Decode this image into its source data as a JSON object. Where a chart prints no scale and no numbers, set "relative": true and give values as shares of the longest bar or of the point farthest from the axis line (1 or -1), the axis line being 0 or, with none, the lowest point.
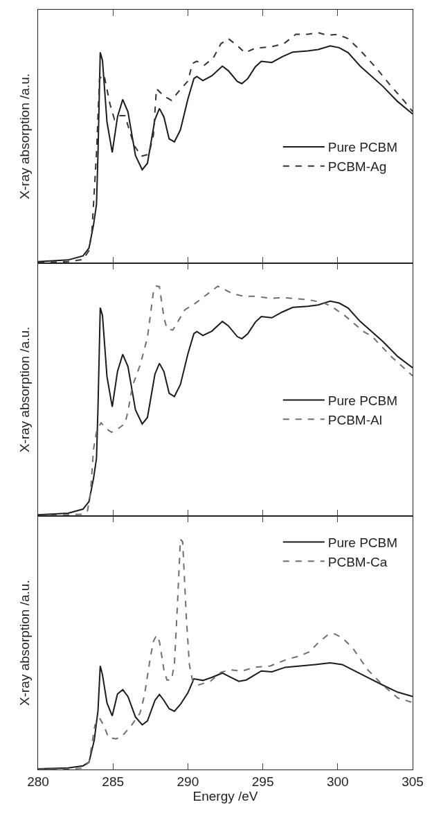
{
  "chart_data": [
    {
      "type": "line",
      "ylabel": "X-ray absorption /a.u.",
      "relative": true,
      "xlim": [
        280,
        305
      ],
      "xticks": [
        280,
        285,
        290,
        295,
        300,
        305
      ],
      "tick_labels": false,
      "legend": "right",
      "series": [
        {
          "name": "Pure PCBM",
          "color": "#1a1a1a",
          "line_style": "solid",
          "x": [
            280,
            282,
            283,
            283.4,
            283.7,
            283.9,
            284.0,
            284.15,
            284.3,
            284.6,
            284.95,
            285.3,
            285.65,
            286.0,
            286.5,
            286.95,
            287.3,
            287.8,
            288.1,
            288.4,
            288.75,
            289.1,
            289.5,
            290.0,
            290.4,
            290.6,
            291.0,
            291.6,
            292.3,
            292.7,
            293.3,
            293.6,
            294.0,
            294.5,
            294.9,
            295.6,
            296.3,
            297.0,
            298.0,
            298.7,
            299.5,
            300.1,
            300.7,
            301.5,
            303.0,
            304.0,
            305.0
          ],
          "values": [
            0.006,
            0.013,
            0.031,
            0.065,
            0.165,
            0.254,
            0.478,
            0.915,
            0.879,
            0.612,
            0.48,
            0.634,
            0.71,
            0.656,
            0.467,
            0.405,
            0.433,
            0.623,
            0.671,
            0.634,
            0.539,
            0.526,
            0.578,
            0.712,
            0.801,
            0.81,
            0.792,
            0.813,
            0.855,
            0.835,
            0.788,
            0.779,
            0.801,
            0.852,
            0.876,
            0.871,
            0.896,
            0.916,
            0.921,
            0.927,
            0.943,
            0.935,
            0.913,
            0.855,
            0.768,
            0.701,
            0.647
          ]
        },
        {
          "name": "PCBM-Ag",
          "color": "#333333",
          "line_style": "dashed",
          "x": [
            280,
            282,
            283,
            283.4,
            283.6,
            283.9,
            284.1,
            284.4,
            284.8,
            285.1,
            285.4,
            285.8,
            286.4,
            286.9,
            287.4,
            287.7,
            287.9,
            288.4,
            288.9,
            289.4,
            290.0,
            290.3,
            290.6,
            291.1,
            291.7,
            292.2,
            292.7,
            293.3,
            293.8,
            294.5,
            295.5,
            296.4,
            297.2,
            298.0,
            298.7,
            299.3,
            300.0,
            300.7,
            301.5,
            302.5,
            303.5,
            304.4,
            305
          ],
          "values": [
            0.002,
            0.006,
            0.015,
            0.054,
            0.143,
            0.478,
            0.801,
            0.818,
            0.69,
            0.623,
            0.64,
            0.64,
            0.511,
            0.464,
            0.472,
            0.556,
            0.757,
            0.725,
            0.706,
            0.746,
            0.79,
            0.866,
            0.876,
            0.859,
            0.891,
            0.952,
            0.974,
            0.944,
            0.913,
            0.933,
            0.938,
            0.952,
            0.993,
            0.993,
            1,
            0.989,
            0.993,
            0.974,
            0.924,
            0.852,
            0.773,
            0.706,
            0.658
          ]
        }
      ]
    },
    {
      "type": "line",
      "ylabel": "X-ray absorption /a.u.",
      "relative": true,
      "xlim": [
        280,
        305
      ],
      "xticks": [
        280,
        285,
        290,
        295,
        300,
        305
      ],
      "tick_labels": false,
      "legend": "right",
      "series": [
        {
          "name": "Pure PCBM",
          "color": "#1a1a1a",
          "line_style": "solid",
          "x": [
            280,
            282,
            283,
            283.4,
            283.7,
            283.9,
            284.0,
            284.15,
            284.3,
            284.6,
            284.95,
            285.3,
            285.65,
            286.0,
            286.5,
            286.95,
            287.3,
            287.8,
            288.1,
            288.4,
            288.75,
            289.1,
            289.5,
            290.0,
            290.4,
            290.6,
            291.0,
            291.6,
            292.3,
            292.7,
            293.3,
            293.6,
            294.0,
            294.5,
            294.9,
            295.6,
            296.3,
            297.0,
            298.0,
            298.7,
            299.5,
            300.1,
            300.7,
            301.5,
            303.0,
            304.0,
            305.0
          ],
          "values": [
            0.006,
            0.013,
            0.031,
            0.064,
            0.164,
            0.252,
            0.473,
            0.906,
            0.871,
            0.606,
            0.475,
            0.628,
            0.703,
            0.65,
            0.462,
            0.401,
            0.429,
            0.617,
            0.664,
            0.628,
            0.534,
            0.52,
            0.572,
            0.705,
            0.793,
            0.802,
            0.785,
            0.804,
            0.846,
            0.827,
            0.78,
            0.771,
            0.793,
            0.843,
            0.867,
            0.862,
            0.887,
            0.907,
            0.912,
            0.918,
            0.934,
            0.926,
            0.904,
            0.846,
            0.76,
            0.694,
            0.645
          ]
        },
        {
          "name": "PCBM-Al",
          "color": "#6e6e6e",
          "line_style": "dashed",
          "x": [
            280,
            282,
            283,
            283.3,
            283.5,
            283.7,
            283.9,
            284.2,
            284.6,
            284.9,
            285.4,
            285.8,
            286.0,
            286.3,
            286.8,
            287.3,
            287.7,
            287.9,
            288.1,
            288.4,
            288.6,
            289.0,
            289.5,
            289.8,
            290.5,
            291.2,
            292.0,
            292.5,
            293.0,
            293.7,
            294.5,
            295.5,
            296.5,
            298.0,
            299.0,
            299.6,
            300.5,
            301.7,
            302.3,
            303.5,
            305
          ],
          "values": [
            0.002,
            0.006,
            0.009,
            0.024,
            0.102,
            0.29,
            0.367,
            0.406,
            0.378,
            0.365,
            0.383,
            0.402,
            0.455,
            0.566,
            0.654,
            0.776,
            0.975,
            1,
            0.997,
            0.864,
            0.814,
            0.809,
            0.864,
            0.897,
            0.925,
            0.96,
            0.999,
            0.983,
            0.966,
            0.956,
            0.955,
            0.947,
            0.949,
            0.941,
            0.928,
            0.911,
            0.87,
            0.803,
            0.781,
            0.698,
            0.61
          ]
        }
      ]
    },
    {
      "type": "line",
      "ylabel": "X-ray absorption /a.u.",
      "xlabel": "Energy /eV",
      "relative": true,
      "xlim": [
        280,
        305
      ],
      "xticks": [
        280,
        285,
        290,
        295,
        300,
        305
      ],
      "tick_labels": "x",
      "legend": "top right",
      "series": [
        {
          "name": "Pure PCBM",
          "color": "#1a1a1a",
          "line_style": "solid",
          "x": [
            280,
            282,
            283,
            283.4,
            283.75,
            284.0,
            284.15,
            284.3,
            284.6,
            284.95,
            285.3,
            285.65,
            286.0,
            286.5,
            286.95,
            287.3,
            287.8,
            288.1,
            288.4,
            288.75,
            289.1,
            289.5,
            290.0,
            290.4,
            291.0,
            291.6,
            292.3,
            292.7,
            293.4,
            293.9,
            294.9,
            295.6,
            296.5,
            297.5,
            298.5,
            299.5,
            300.3,
            301,
            302,
            303,
            304,
            305
          ],
          "values": [
            0.003,
            0.007,
            0.016,
            0.032,
            0.128,
            0.256,
            0.45,
            0.411,
            0.289,
            0.233,
            0.328,
            0.347,
            0.317,
            0.228,
            0.194,
            0.211,
            0.3,
            0.326,
            0.3,
            0.264,
            0.253,
            0.283,
            0.333,
            0.394,
            0.387,
            0.4,
            0.419,
            0.406,
            0.383,
            0.389,
            0.428,
            0.424,
            0.444,
            0.45,
            0.456,
            0.463,
            0.456,
            0.433,
            0.4,
            0.367,
            0.336,
            0.317
          ]
        },
        {
          "name": "PCBM-Ca",
          "color": "#6e6e6e",
          "line_style": "dashed",
          "x": [
            280,
            282,
            283,
            283.4,
            283.6,
            283.8,
            284.1,
            284.4,
            284.7,
            285.2,
            285.6,
            286.2,
            286.8,
            287.1,
            287.5,
            287.7,
            287.9,
            288.1,
            288.4,
            288.6,
            288.9,
            289.1,
            289.3,
            289.5,
            289.65,
            289.9,
            290.1,
            290.3,
            290.7,
            291.5,
            292.2,
            292.8,
            293.6,
            294.5,
            295.5,
            296.6,
            297.5,
            298.1,
            298.7,
            299.3,
            299.8,
            300.3,
            301,
            302,
            303,
            304,
            305
          ],
          "values": [
            0.001,
            0.002,
            0.006,
            0.033,
            0.111,
            0.194,
            0.224,
            0.189,
            0.139,
            0.133,
            0.144,
            0.189,
            0.244,
            0.322,
            0.489,
            0.556,
            0.583,
            0.556,
            0.433,
            0.389,
            0.389,
            0.456,
            0.711,
            1,
            0.989,
            0.656,
            0.456,
            0.389,
            0.367,
            0.383,
            0.422,
            0.433,
            0.428,
            0.444,
            0.45,
            0.478,
            0.494,
            0.511,
            0.55,
            0.583,
            0.589,
            0.572,
            0.528,
            0.433,
            0.367,
            0.311,
            0.291
          ]
        }
      ]
    }
  ]
}
